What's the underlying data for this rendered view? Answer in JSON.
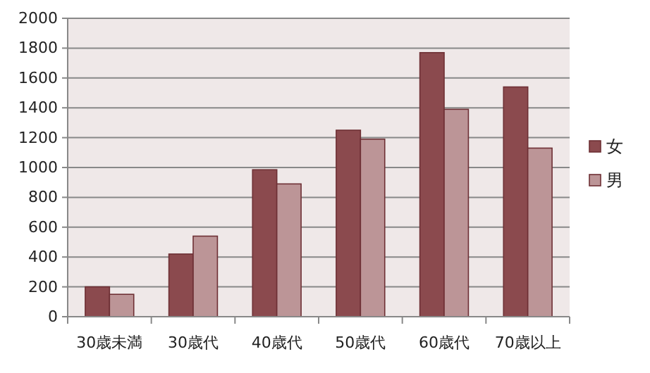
{
  "chart_data": {
    "type": "bar",
    "categories": [
      "30歳未満",
      "30歳代",
      "40歳代",
      "50歳代",
      "60歳代",
      "70歳以上"
    ],
    "series": [
      {
        "name": "女",
        "color": "#8b4a4e",
        "values": [
          200,
          420,
          985,
          1250,
          1770,
          1540
        ]
      },
      {
        "name": "男",
        "color": "#bc9597",
        "values": [
          150,
          540,
          890,
          1190,
          1390,
          1130
        ]
      }
    ],
    "ylim": [
      0,
      2000
    ],
    "yticks": [
      0,
      200,
      400,
      600,
      800,
      1000,
      1200,
      1400,
      1600,
      1800,
      2000
    ],
    "grid": "y",
    "legend": "right"
  }
}
